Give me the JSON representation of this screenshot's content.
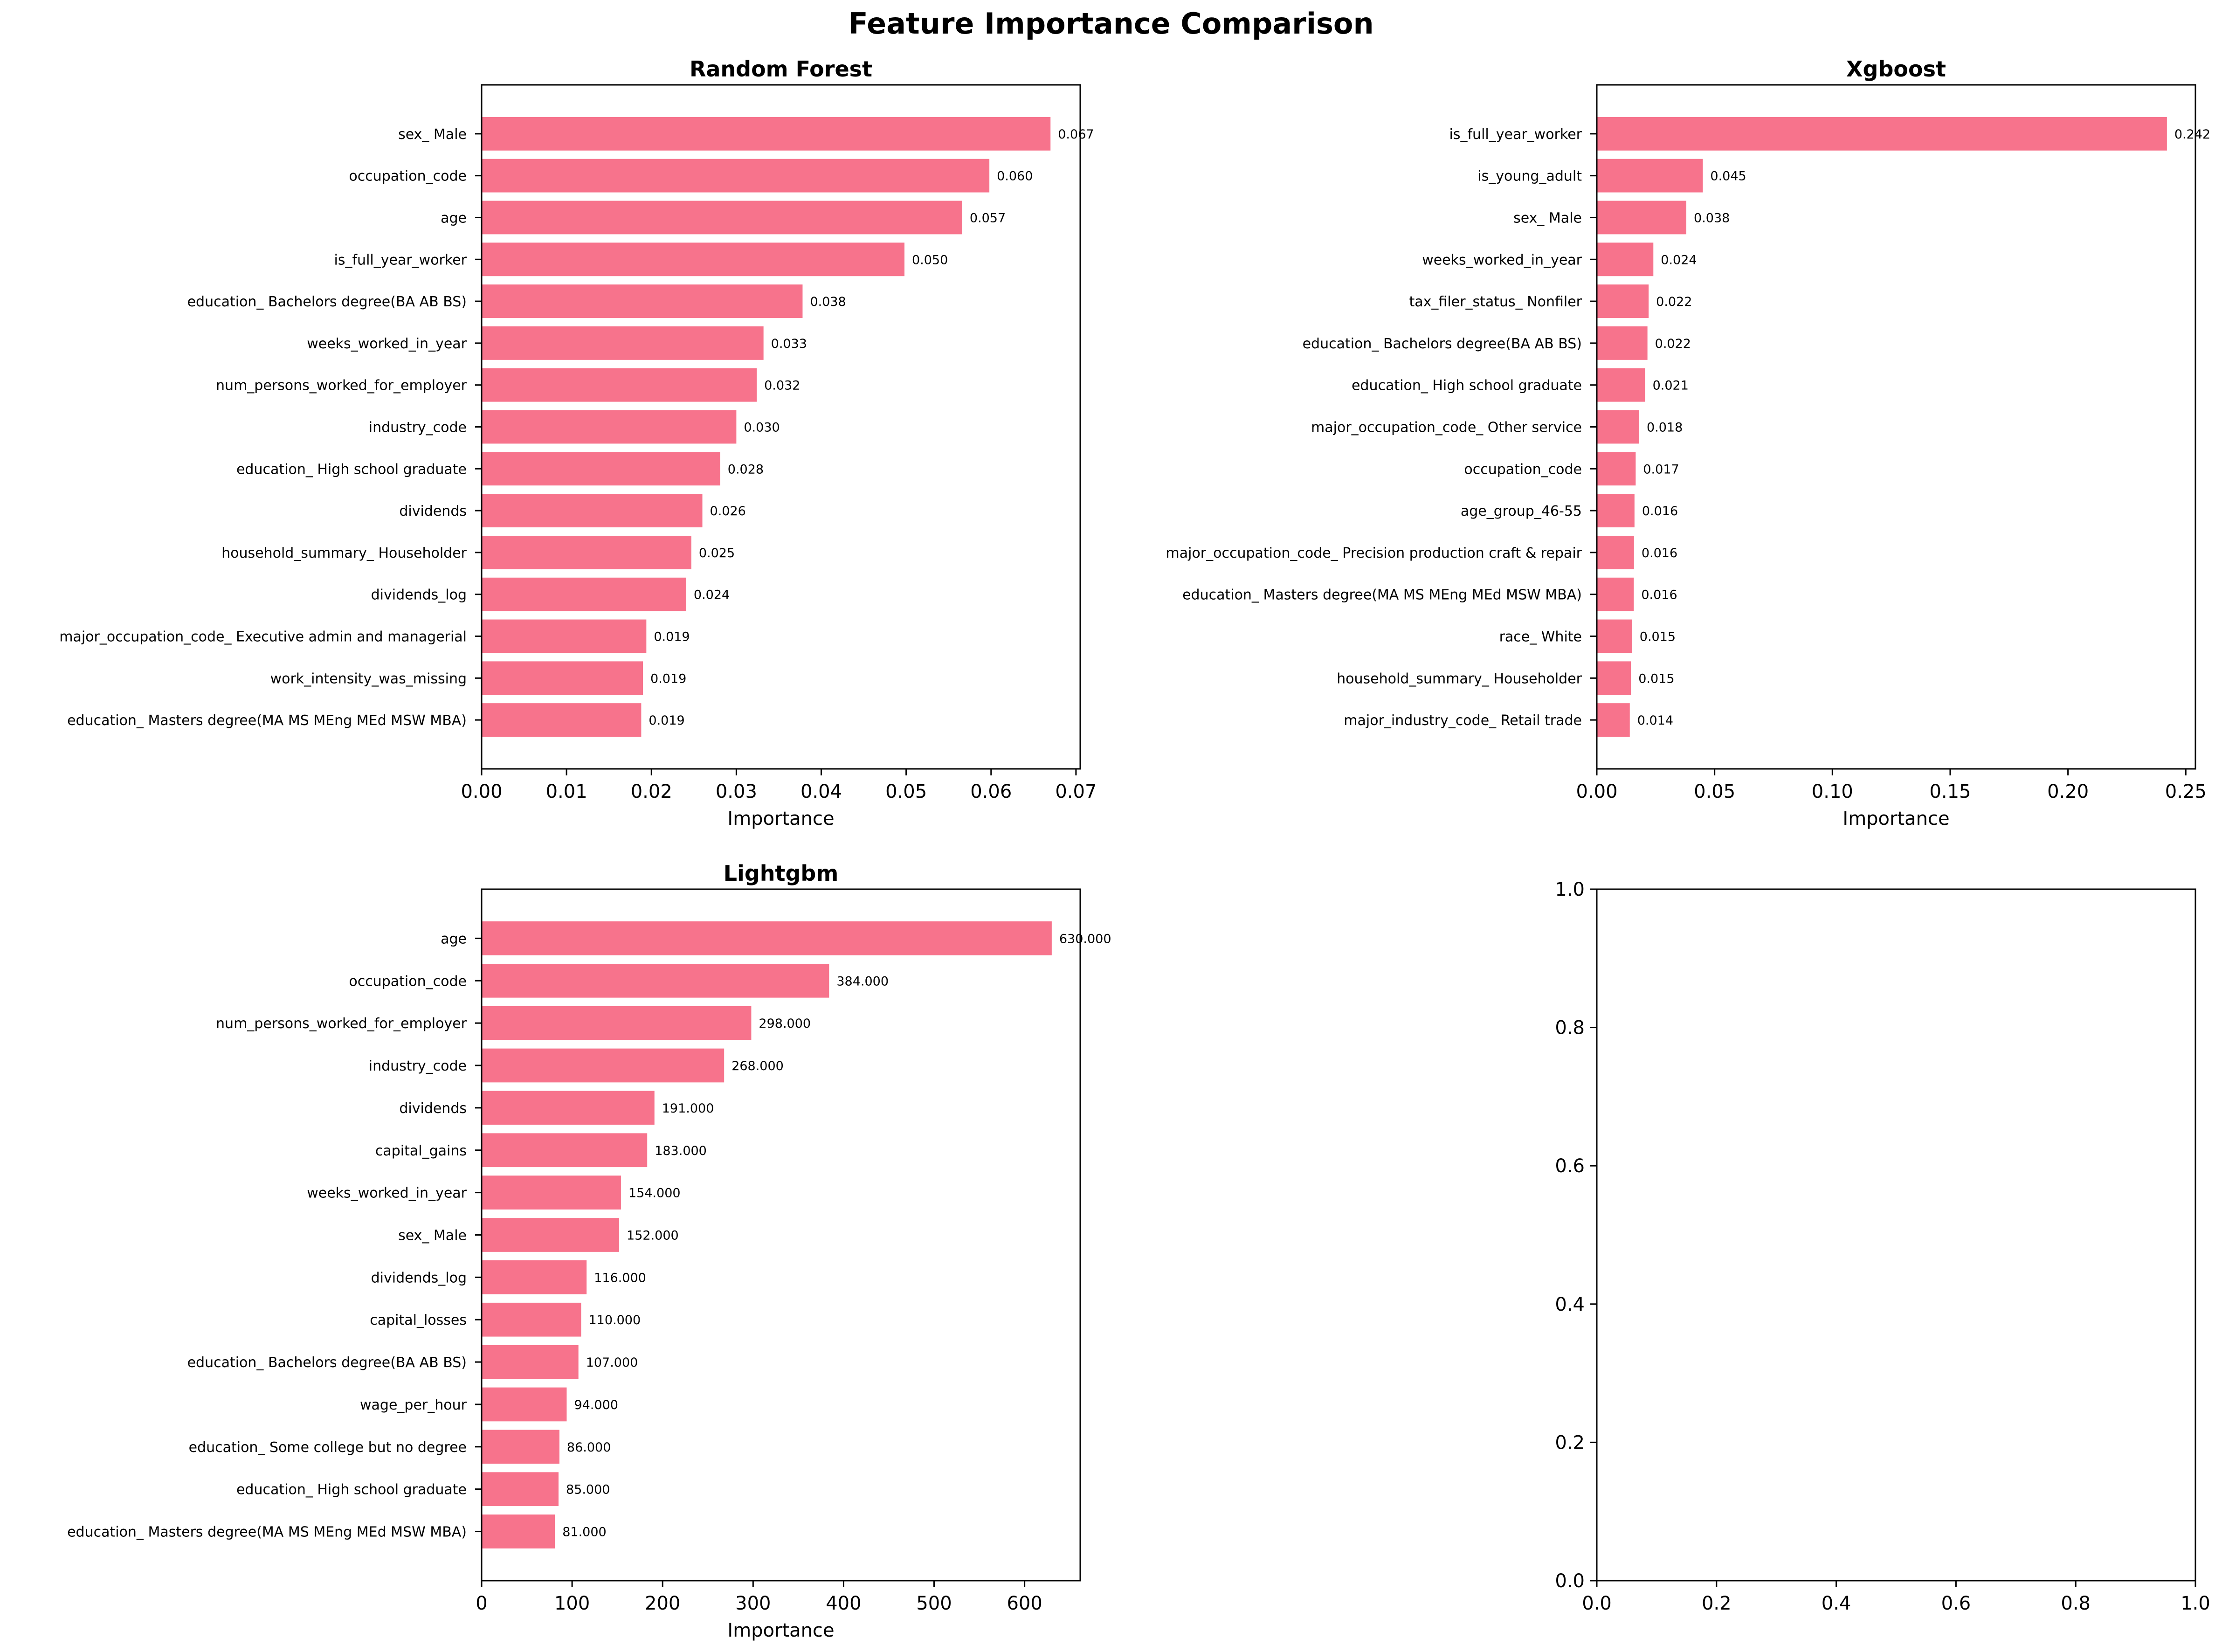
{
  "figure_title": "Feature Importance Comparison",
  "colors": {
    "bar": "#f7738c",
    "axis": "#000000",
    "text": "#000000"
  },
  "chart_data": [
    {
      "type": "bar",
      "orientation": "horizontal",
      "title": "Random Forest",
      "xlabel": "Importance",
      "ylabel": "",
      "xlim": [
        0,
        0.0705
      ],
      "xticks": [
        0.0,
        0.01,
        0.02,
        0.03,
        0.04,
        0.05,
        0.06,
        0.07
      ],
      "xtick_labels": [
        "0.00",
        "0.01",
        "0.02",
        "0.03",
        "0.04",
        "0.05",
        "0.06",
        "0.07"
      ],
      "categories": [
        "sex_ Male",
        "occupation_code",
        "age",
        "is_full_year_worker",
        "education_ Bachelors degree(BA AB BS)",
        "weeks_worked_in_year",
        "num_persons_worked_for_employer",
        "industry_code",
        "education_ High school graduate",
        "dividends",
        "household_summary_ Householder",
        "dividends_log",
        "major_occupation_code_ Executive admin and managerial",
        "work_intensity_was_missing",
        "education_ Masters degree(MA MS MEng MEd MSW MBA)"
      ],
      "values": [
        0.067,
        0.0598,
        0.0566,
        0.0498,
        0.0378,
        0.0332,
        0.0324,
        0.03,
        0.0281,
        0.026,
        0.0247,
        0.0241,
        0.0194,
        0.019,
        0.0188
      ],
      "value_labels": [
        "0.067",
        "0.060",
        "0.057",
        "0.050",
        "0.038",
        "0.033",
        "0.032",
        "0.030",
        "0.028",
        "0.026",
        "0.025",
        "0.024",
        "0.019",
        "0.019",
        "0.019"
      ],
      "grid": false
    },
    {
      "type": "bar",
      "orientation": "horizontal",
      "title": "Xgboost",
      "xlabel": "Importance",
      "ylabel": "",
      "xlim": [
        0,
        0.2541
      ],
      "xticks": [
        0.0,
        0.05,
        0.1,
        0.15,
        0.2,
        0.25
      ],
      "xtick_labels": [
        "0.00",
        "0.05",
        "0.10",
        "0.15",
        "0.20",
        "0.25"
      ],
      "categories": [
        "is_full_year_worker",
        "is_young_adult",
        "sex_ Male",
        "weeks_worked_in_year",
        "tax_filer_status_ Nonfiler",
        "education_ Bachelors degree(BA AB BS)",
        "education_ High school graduate",
        "major_occupation_code_ Other service",
        "occupation_code",
        "age_group_46-55",
        "major_occupation_code_ Precision production craft & repair",
        "education_ Masters degree(MA MS MEng MEd MSW MBA)",
        "race_ White",
        "household_summary_ Householder",
        "major_industry_code_ Retail trade"
      ],
      "values": [
        0.242,
        0.045,
        0.038,
        0.024,
        0.022,
        0.0215,
        0.0205,
        0.018,
        0.0165,
        0.016,
        0.0158,
        0.0157,
        0.015,
        0.0145,
        0.014
      ],
      "value_labels": [
        "0.242",
        "0.045",
        "0.038",
        "0.024",
        "0.022",
        "0.022",
        "0.021",
        "0.018",
        "0.017",
        "0.016",
        "0.016",
        "0.016",
        "0.015",
        "0.015",
        "0.014"
      ],
      "grid": false
    },
    {
      "type": "bar",
      "orientation": "horizontal",
      "title": "Lightgbm",
      "xlabel": "Importance",
      "ylabel": "",
      "xlim": [
        0,
        661.5
      ],
      "xticks": [
        0,
        100,
        200,
        300,
        400,
        500,
        600
      ],
      "xtick_labels": [
        "0",
        "100",
        "200",
        "300",
        "400",
        "500",
        "600"
      ],
      "categories": [
        "age",
        "occupation_code",
        "num_persons_worked_for_employer",
        "industry_code",
        "dividends",
        "capital_gains",
        "weeks_worked_in_year",
        "sex_ Male",
        "dividends_log",
        "capital_losses",
        "education_ Bachelors degree(BA AB BS)",
        "wage_per_hour",
        "education_ Some college but no degree",
        "education_ High school graduate",
        "education_ Masters degree(MA MS MEng MEd MSW MBA)"
      ],
      "values": [
        630,
        384,
        298,
        268,
        191,
        183,
        154,
        152,
        116,
        110,
        107,
        94,
        86,
        85,
        81
      ],
      "value_labels": [
        "630.000",
        "384.000",
        "298.000",
        "268.000",
        "191.000",
        "183.000",
        "154.000",
        "152.000",
        "116.000",
        "110.000",
        "107.000",
        "94.000",
        "86.000",
        "85.000",
        "81.000"
      ],
      "grid": false
    },
    {
      "type": "empty",
      "title": "",
      "xlim": [
        0,
        1
      ],
      "ylim": [
        0,
        1
      ],
      "xticks": [
        0.0,
        0.2,
        0.4,
        0.6,
        0.8,
        1.0
      ],
      "xtick_labels": [
        "0.0",
        "0.2",
        "0.4",
        "0.6",
        "0.8",
        "1.0"
      ],
      "yticks": [
        0.0,
        0.2,
        0.4,
        0.6,
        0.8,
        1.0
      ],
      "ytick_labels": [
        "0.0",
        "0.2",
        "0.4",
        "0.6",
        "0.8",
        "1.0"
      ]
    }
  ]
}
